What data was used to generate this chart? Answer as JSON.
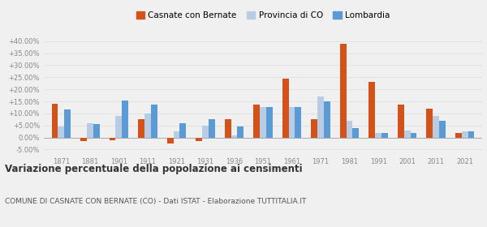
{
  "years": [
    1871,
    1881,
    1901,
    1911,
    1921,
    1931,
    1936,
    1951,
    1961,
    1971,
    1981,
    1991,
    2001,
    2011,
    2021
  ],
  "casnate": [
    14.0,
    -1.5,
    -1.0,
    7.5,
    -2.5,
    -1.5,
    7.5,
    13.8,
    24.3,
    7.5,
    39.0,
    23.0,
    13.5,
    12.0,
    2.0
  ],
  "provincia": [
    4.5,
    6.0,
    9.0,
    10.0,
    2.5,
    5.0,
    1.0,
    12.5,
    12.5,
    17.0,
    7.0,
    2.0,
    3.0,
    9.0,
    2.5
  ],
  "lombardia": [
    11.5,
    5.5,
    15.5,
    13.5,
    6.0,
    7.5,
    4.5,
    12.5,
    12.5,
    15.0,
    4.0,
    2.0,
    2.0,
    7.0,
    2.5
  ],
  "color_casnate": "#d2521a",
  "color_provincia": "#b8cce4",
  "color_lombardia": "#5b9bd5",
  "title": "Variazione percentuale della popolazione ai censimenti",
  "subtitle": "COMUNE DI CASNATE CON BERNATE (CO) - Dati ISTAT - Elaborazione TUTTITALIA.IT",
  "legend_labels": [
    "Casnate con Bernate",
    "Provincia di CO",
    "Lombardia"
  ],
  "ylim": [
    -7.0,
    42.0
  ],
  "yticks": [
    -5.0,
    0.0,
    5.0,
    10.0,
    15.0,
    20.0,
    25.0,
    30.0,
    35.0,
    40.0
  ],
  "background_color": "#f0f0f0",
  "grid_color": "#dddddd",
  "bar_width": 0.22
}
